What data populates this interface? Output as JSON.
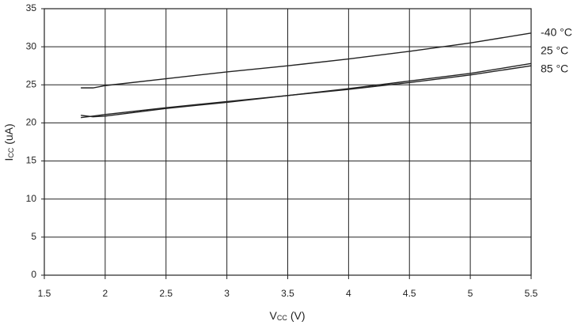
{
  "chart_data": {
    "type": "line",
    "x_label": [
      "V",
      "CC",
      "(V)"
    ],
    "y_label": [
      "I",
      "CC",
      "(uA)"
    ],
    "x": [
      1.8,
      1.9,
      2.0,
      2.5,
      3.0,
      3.5,
      4.0,
      4.5,
      5.0,
      5.5
    ],
    "series": [
      {
        "name": "-40 °C",
        "color": "#222222",
        "values": [
          24.6,
          24.6,
          24.9,
          25.8,
          26.7,
          27.5,
          28.4,
          29.4,
          30.5,
          31.8
        ]
      },
      {
        "name": "25 °C",
        "color": "#222222",
        "values": [
          20.7,
          20.9,
          21.1,
          22.0,
          22.8,
          23.6,
          24.5,
          25.5,
          26.5,
          27.8
        ]
      },
      {
        "name": "85 °C",
        "color": "#222222",
        "values": [
          21.0,
          20.8,
          20.9,
          21.9,
          22.7,
          23.6,
          24.4,
          25.3,
          26.3,
          27.5
        ]
      }
    ],
    "xlim": [
      1.5,
      5.5
    ],
    "xticks": [
      1.5,
      2,
      2.5,
      3,
      3.5,
      4,
      4.5,
      5,
      5.5
    ],
    "ylim": [
      0,
      35
    ],
    "yticks": [
      0,
      5,
      10,
      15,
      20,
      25,
      30,
      35
    ],
    "grid": true
  }
}
